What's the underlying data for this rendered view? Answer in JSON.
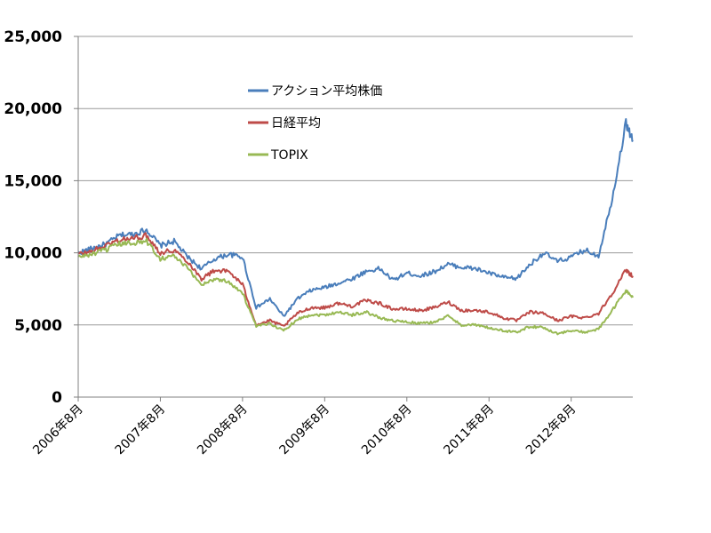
{
  "chart_data": {
    "type": "line",
    "title": "",
    "xlabel": "",
    "ylabel": "",
    "ylim": [
      0,
      25000
    ],
    "y_ticks": [
      "0",
      "5,000",
      "10,000",
      "15,000",
      "20,000",
      "25,000"
    ],
    "y_tick_values": [
      0,
      5000,
      10000,
      15000,
      20000,
      25000
    ],
    "x_ticks": [
      "2006年8月",
      "2007年8月",
      "2008年8月",
      "2009年8月",
      "2010年8月",
      "2011年8月",
      "2012年8月"
    ],
    "x_range": [
      "2006-08",
      "2013-05"
    ],
    "grid": "horizontal",
    "legend_position": "top-middle",
    "x": [
      "2006-08",
      "2006-10",
      "2006-12",
      "2007-02",
      "2007-04",
      "2007-06",
      "2007-08",
      "2007-10",
      "2007-12",
      "2008-02",
      "2008-04",
      "2008-06",
      "2008-08",
      "2008-10",
      "2008-12",
      "2009-02",
      "2009-04",
      "2009-06",
      "2009-08",
      "2009-10",
      "2009-12",
      "2010-02",
      "2010-04",
      "2010-06",
      "2010-08",
      "2010-10",
      "2010-12",
      "2011-02",
      "2011-04",
      "2011-06",
      "2011-08",
      "2011-10",
      "2011-12",
      "2012-02",
      "2012-04",
      "2012-06",
      "2012-08",
      "2012-10",
      "2012-12",
      "2013-02",
      "2013-04",
      "2013-05"
    ],
    "series": [
      {
        "name": "アクション平均株価",
        "color": "#4a7ebb",
        "values": [
          10000,
          10300,
          10600,
          11200,
          11300,
          11600,
          10500,
          10800,
          9700,
          8900,
          9600,
          9900,
          9700,
          6200,
          6800,
          5600,
          6800,
          7400,
          7600,
          7900,
          8200,
          8700,
          8900,
          8100,
          8600,
          8400,
          8700,
          9200,
          9000,
          8900,
          8600,
          8300,
          8200,
          9200,
          10000,
          9400,
          9700,
          10200,
          9800,
          13800,
          19000,
          17800
        ]
      },
      {
        "name": "日経平均",
        "color": "#be4b48",
        "values": [
          9900,
          10100,
          10500,
          10900,
          11000,
          11200,
          10000,
          10200,
          9400,
          8200,
          8800,
          8700,
          7800,
          5000,
          5300,
          4900,
          5800,
          6200,
          6200,
          6500,
          6300,
          6700,
          6500,
          6100,
          6100,
          6000,
          6200,
          6600,
          6000,
          6000,
          5900,
          5500,
          5300,
          5900,
          5800,
          5300,
          5600,
          5500,
          5800,
          7200,
          8800,
          8400
        ]
      },
      {
        "name": "TOPIX",
        "color": "#98b954",
        "values": [
          9700,
          9900,
          10200,
          10600,
          10700,
          10800,
          9600,
          9800,
          8900,
          7800,
          8200,
          8000,
          7200,
          4900,
          5100,
          4600,
          5400,
          5700,
          5700,
          5900,
          5700,
          5900,
          5500,
          5300,
          5200,
          5100,
          5200,
          5600,
          5000,
          5000,
          4800,
          4600,
          4500,
          4900,
          4800,
          4400,
          4600,
          4500,
          4700,
          6000,
          7400,
          6900
        ]
      }
    ]
  }
}
